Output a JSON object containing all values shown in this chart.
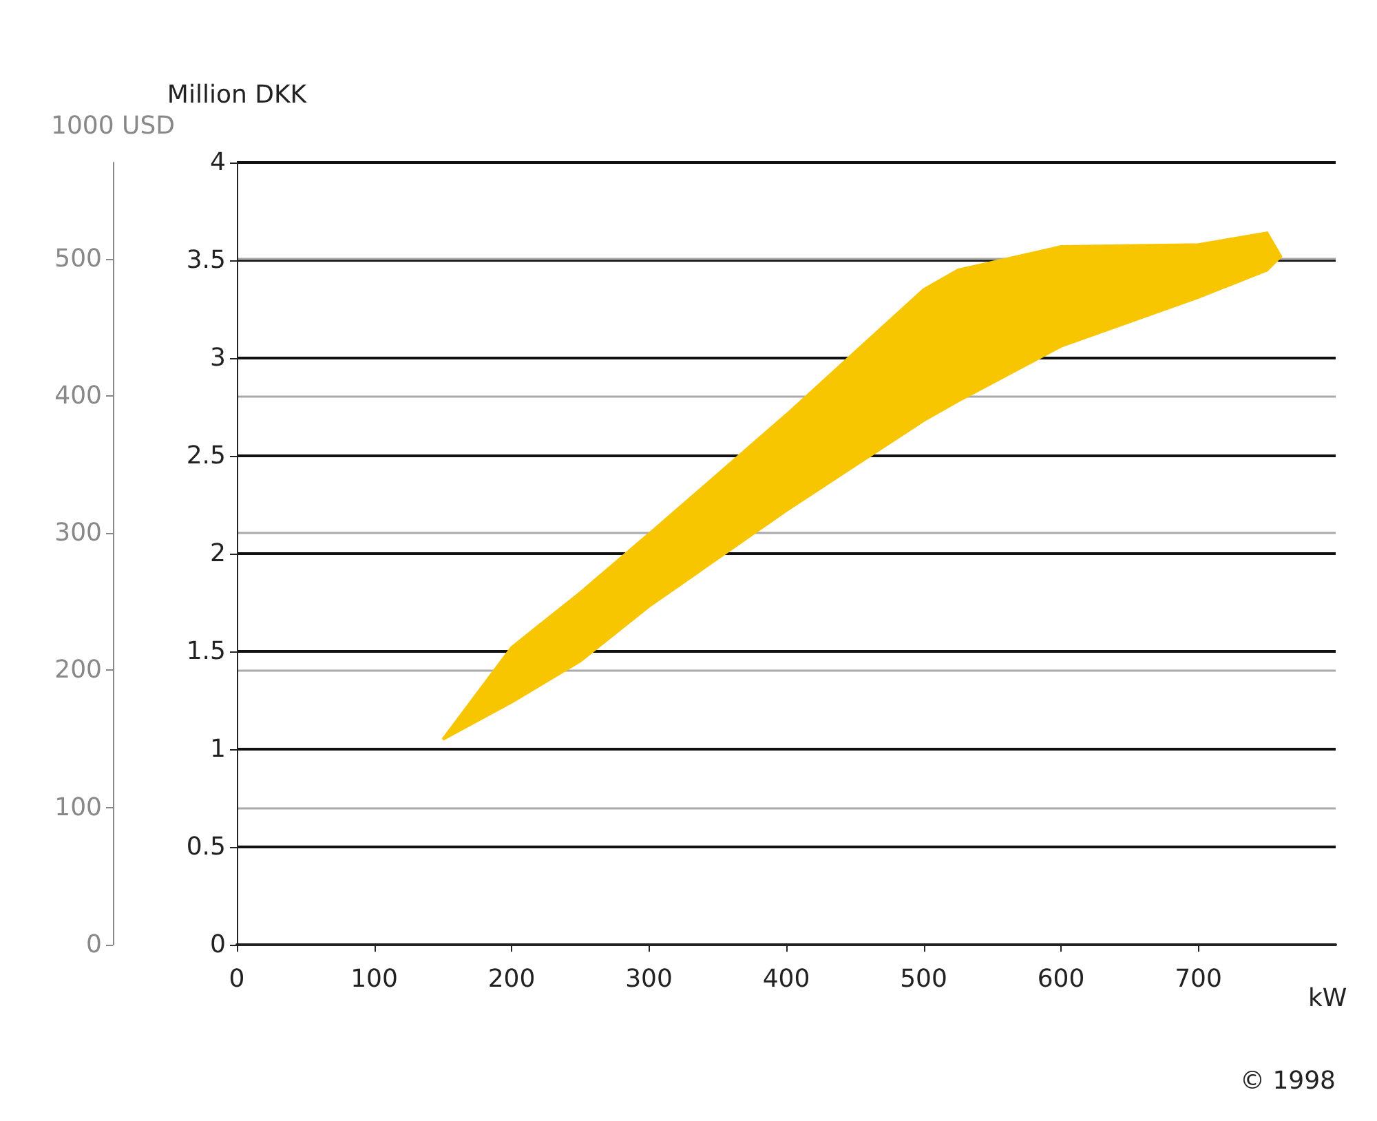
{
  "chart_data": {
    "type": "area",
    "xlabel": "kW",
    "ylabel": "Million DKK",
    "y2label": "1000 USD",
    "xlim": [
      0,
      800
    ],
    "xticks": [
      0,
      100,
      200,
      300,
      400,
      500,
      600,
      700
    ],
    "ylim": [
      0,
      4
    ],
    "yticks": [
      0,
      0.5,
      1,
      1.5,
      2,
      2.5,
      3,
      3.5,
      4
    ],
    "y2lim": [
      0,
      570
    ],
    "y2ticks": [
      0,
      100,
      200,
      300,
      400,
      500
    ],
    "grid": "y",
    "series": [
      {
        "color": "#f7c600",
        "x": [
          150,
          200,
          250,
          300,
          400,
          450,
          500,
          525,
          600,
          700,
          750,
          760,
          750,
          700,
          600,
          525,
          500,
          450,
          400,
          300,
          250,
          200
        ],
        "values": [
          1.05,
          1.52,
          1.8,
          2.1,
          2.71,
          3.03,
          3.35,
          3.45,
          3.57,
          3.58,
          3.64,
          3.52,
          3.45,
          3.31,
          3.06,
          2.78,
          2.68,
          2.45,
          2.22,
          1.73,
          1.45,
          1.24
        ]
      }
    ],
    "annotations": [
      "© 1998"
    ]
  }
}
